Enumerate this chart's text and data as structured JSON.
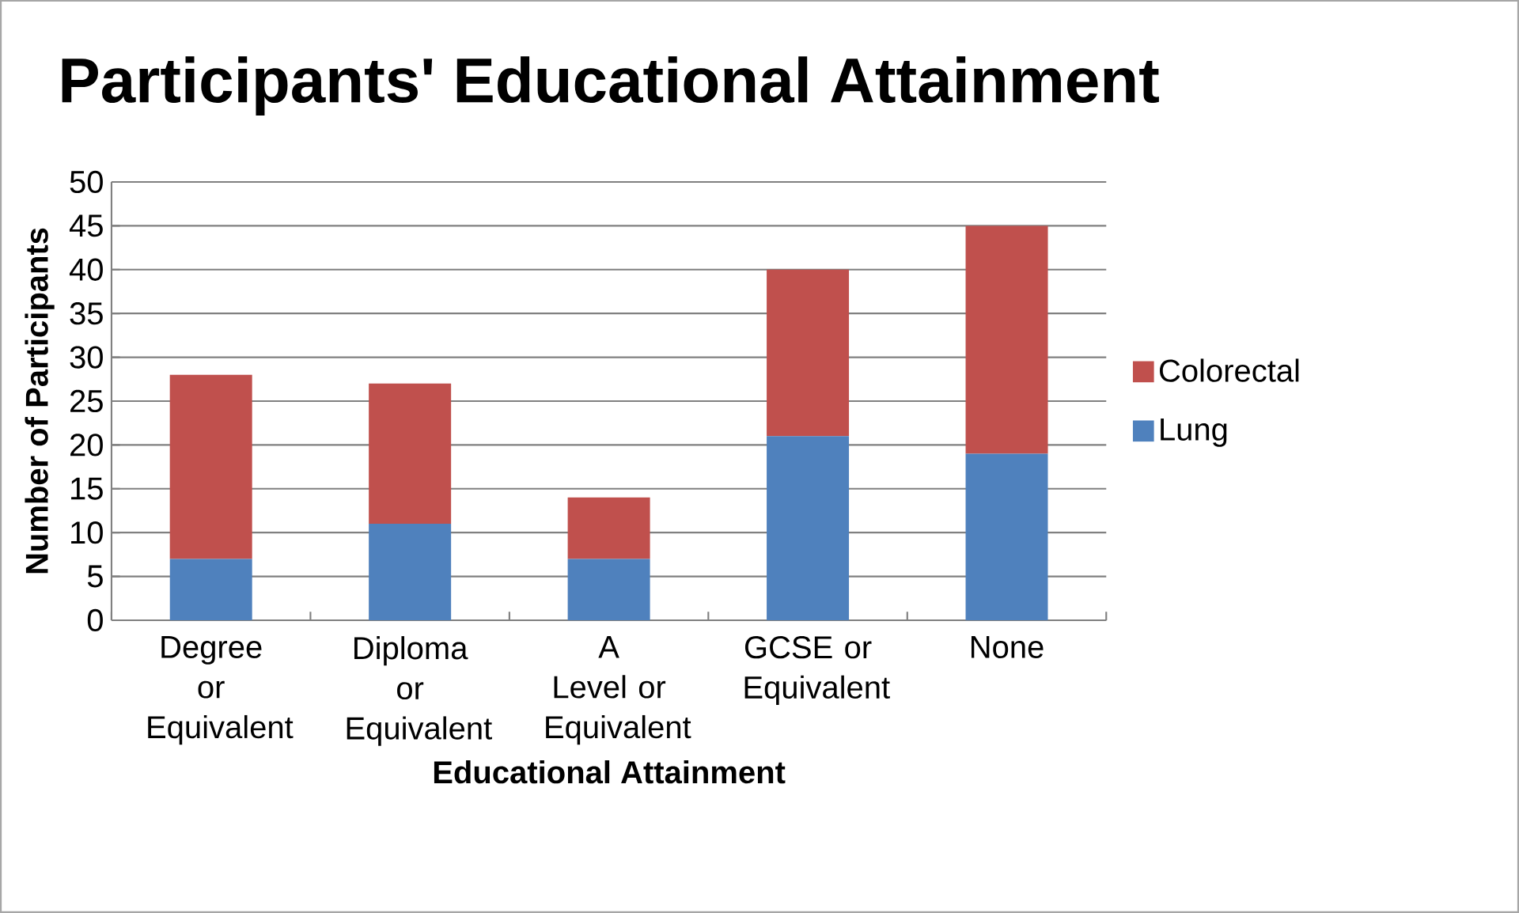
{
  "chart_data": {
    "type": "bar",
    "title": "Participants' Educational Attainment",
    "xlabel": "Educational Attainment",
    "ylabel": "Number of Participants",
    "categories": [
      "Degree or Equivalent",
      "Diploma or Equivalent",
      "A Level or Equivalent",
      "GCSE or Equivalent",
      "None"
    ],
    "series": [
      {
        "name": "Lung",
        "color": "#4f81bd",
        "values": [
          7,
          11,
          7,
          21,
          19
        ]
      },
      {
        "name": "Colorectal",
        "color": "#c0504d",
        "values": [
          21,
          16,
          7,
          19,
          26
        ]
      }
    ],
    "stacked": true,
    "ylim": [
      0,
      50
    ],
    "yticks": [
      0,
      5,
      10,
      15,
      20,
      25,
      30,
      35,
      40,
      45,
      50
    ],
    "grid": "y",
    "legend": "right"
  }
}
